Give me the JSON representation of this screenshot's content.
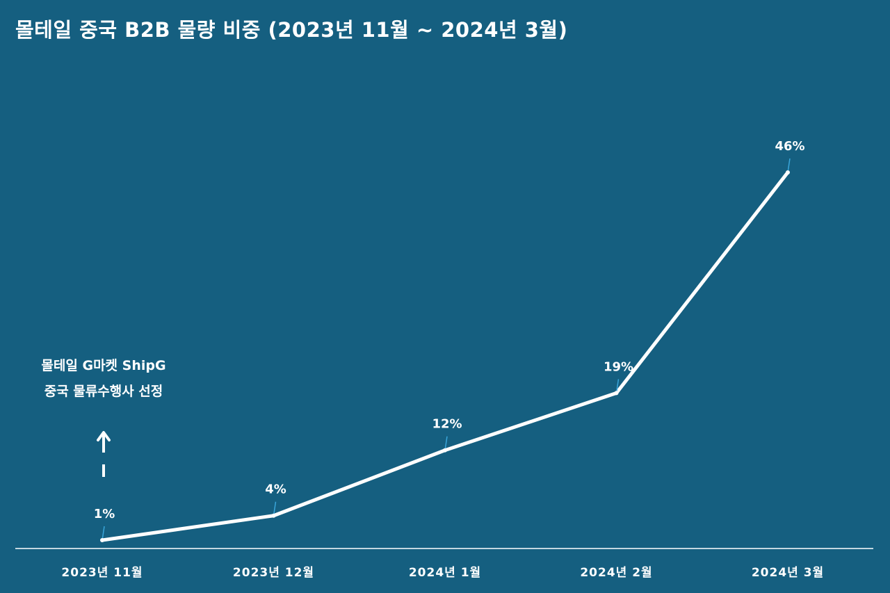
{
  "chart_data": {
    "type": "line",
    "title": "몰테일 중국 B2B 물량 비중 (2023년 11월 ~ 2024년 3월)",
    "categories": [
      "2023년 11월",
      "2023년 12월",
      "2024년 1월",
      "2024년 2월",
      "2024년 3월"
    ],
    "series": [
      {
        "values": [
          1,
          4,
          12,
          19,
          46
        ]
      }
    ],
    "data_labels": [
      "1%",
      "4%",
      "12%",
      "19%",
      "46%"
    ],
    "ylim": [
      0,
      50
    ],
    "grid": false,
    "annotation": {
      "lines": [
        "몰테일 G마켓 ShipG",
        "중국 물류수행사 선정"
      ],
      "category": "2023년 11월"
    },
    "colors": {
      "background": "#155f80",
      "line": "#ffffff",
      "leader": "#3aa6da"
    }
  }
}
